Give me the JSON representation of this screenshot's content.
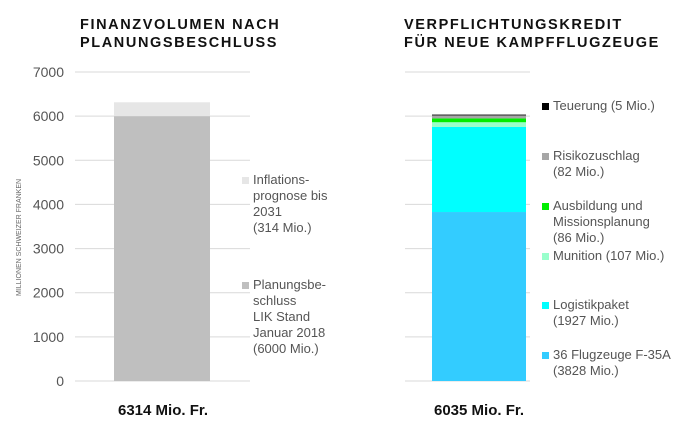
{
  "chart_data": [
    {
      "type": "bar",
      "stacked": true,
      "title": "FINANZVOLUMEN NACH\nPLANUNGSBESCHLUSS",
      "ylabel": "MILLIONEN SCHWEIZER FRANKEN",
      "ylim": [
        0,
        7000
      ],
      "yticks": [
        "0",
        "1000",
        "2000",
        "3000",
        "4000",
        "5000",
        "6000",
        "7000"
      ],
      "grid": true,
      "legend_position": "right",
      "total_label": "6314 Mio. Fr.",
      "series": [
        {
          "name": "Planungsbe-\nschluss\nLIK Stand\nJanuar 2018\n(6000 Mio.)",
          "value": 6000,
          "color": "#bfbfbf"
        },
        {
          "name": "Inflations-\nprognose bis\n2031\n(314 Mio.)",
          "value": 314,
          "color": "#e6e6e6"
        }
      ]
    },
    {
      "type": "bar",
      "stacked": true,
      "title": "VERPFLICHTUNGSKREDIT\nFÜR NEUE KAMPFFLUGZEUGE",
      "ylim": [
        0,
        7000
      ],
      "grid": true,
      "legend_position": "right",
      "total_label": "6035 Mio. Fr.",
      "series": [
        {
          "name": "36 Flugzeuge F-35A\n(3828 Mio.)",
          "value": 3828,
          "color": "#33ccff"
        },
        {
          "name": "Logistikpaket\n(1927 Mio.)",
          "value": 1927,
          "color": "#00ffff"
        },
        {
          "name": "Munition (107 Mio.)",
          "value": 107,
          "color": "#99ffcc"
        },
        {
          "name": "Ausbildung und\nMissionsplanung\n(86 Mio.)",
          "value": 86,
          "color": "#00ee00"
        },
        {
          "name": "Risikozuschlag\n(82 Mio.)",
          "value": 82,
          "color": "#a6a6a6"
        },
        {
          "name": "Teuerung (5 Mio.)",
          "value": 5,
          "color": "#000000"
        }
      ]
    }
  ]
}
